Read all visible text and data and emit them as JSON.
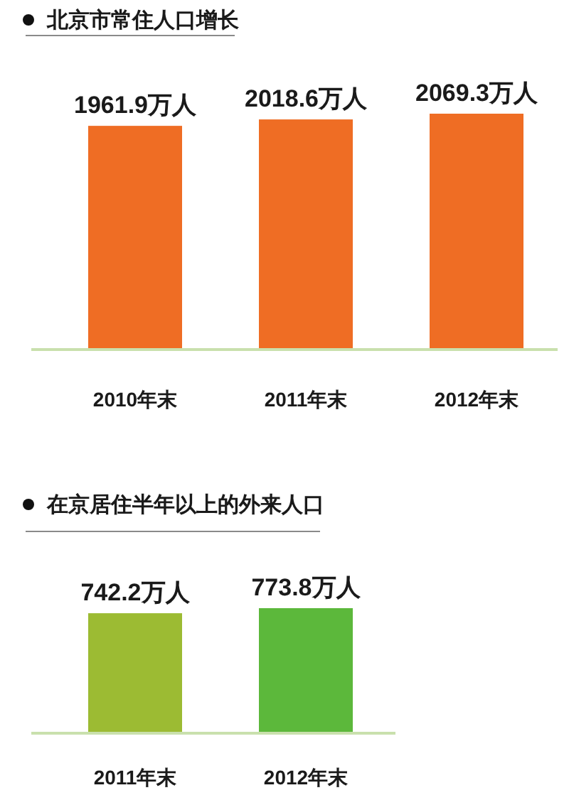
{
  "chart_data": [
    {
      "type": "bar",
      "title": "北京市常住人口增长",
      "categories": [
        "2010年末",
        "2011年末",
        "2012年末"
      ],
      "values": [
        1961.9,
        2018.6,
        2069.3
      ],
      "value_labels": [
        "1961.9万人",
        "2018.6万人",
        "2069.3万人"
      ],
      "color": "#ef6d24"
    },
    {
      "type": "bar",
      "title": "在京居住半年以上的外来人口",
      "categories": [
        "2011年末",
        "2012年末"
      ],
      "values": [
        742.2,
        773.8
      ],
      "value_labels": [
        "742.2万人",
        "773.8万人"
      ],
      "colors": [
        "#9cbb33",
        "#5cb83b"
      ]
    }
  ]
}
